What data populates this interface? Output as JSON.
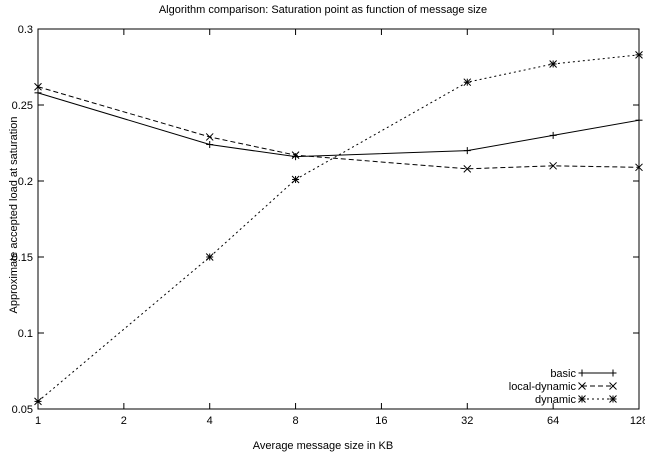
{
  "chart_data": {
    "type": "line",
    "title": "Algorithm comparison: Saturation point as function of message size",
    "xlabel": "Average message size in KB",
    "ylabel": "Approximate accepted load at saturation",
    "x_scale": "log2",
    "x": [
      1,
      2,
      4,
      8,
      16,
      32,
      64,
      128
    ],
    "x_tick_labels": [
      "1",
      "2",
      "4",
      "8",
      "16",
      "32",
      "64",
      "128"
    ],
    "xlim": [
      1,
      128
    ],
    "ylim": [
      0.05,
      0.3
    ],
    "y_ticks": [
      0.05,
      0.1,
      0.15,
      0.2,
      0.25,
      0.3
    ],
    "y_tick_labels": [
      "0.05",
      "0.1",
      "0.15",
      "0.2",
      "0.25",
      "0.3"
    ],
    "grid": false,
    "legend_position": "bottom-right",
    "series": [
      {
        "name": "basic",
        "dash": "solid",
        "marker": "plus",
        "points": [
          [
            1,
            0.258
          ],
          [
            4,
            0.224
          ],
          [
            8,
            0.216
          ],
          [
            32,
            0.22
          ],
          [
            64,
            0.23
          ],
          [
            128,
            0.24
          ]
        ]
      },
      {
        "name": "local-dynamic",
        "dash": "dashed",
        "marker": "cross",
        "points": [
          [
            1,
            0.262
          ],
          [
            4,
            0.229
          ],
          [
            8,
            0.217
          ],
          [
            32,
            0.208
          ],
          [
            64,
            0.21
          ],
          [
            128,
            0.209
          ]
        ]
      },
      {
        "name": "dynamic",
        "dash": "dotted",
        "marker": "star",
        "points": [
          [
            1,
            0.055
          ],
          [
            4,
            0.15
          ],
          [
            8,
            0.201
          ],
          [
            32,
            0.265
          ],
          [
            64,
            0.277
          ],
          [
            128,
            0.283
          ]
        ]
      }
    ]
  }
}
